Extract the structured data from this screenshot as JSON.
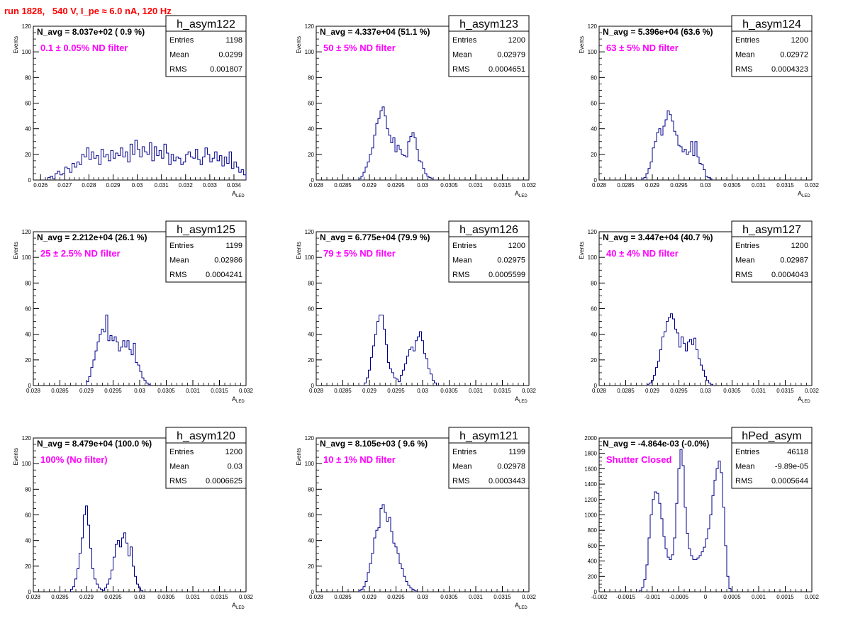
{
  "header": {
    "run_title": "run 1828,   540 V, I_pe ≈ 6.0 nA, 120 Hz"
  },
  "colors": {
    "histogram_line": "#00008b",
    "annotation": "#ff00ff",
    "run_title": "#ff0000"
  },
  "chart_data": [
    {
      "type": "histogram",
      "name": "h_asym122",
      "ylabel": "Events",
      "xlabel": "A",
      "xlabel_sub": "LED",
      "navg": "N_avg = 8.037e+02 ( 0.9 %)",
      "filter": "0.1 ± 0.05% ND filter",
      "stats": {
        "Entries": "1198",
        "Mean": "0.0299",
        "RMS": "0.001807"
      },
      "xlim": [
        0.0257,
        0.0345
      ],
      "ylim": [
        0,
        120
      ],
      "xticks": [
        0.026,
        0.027,
        0.028,
        0.029,
        0.03,
        0.031,
        0.032,
        0.033,
        0.034
      ],
      "xtick_labels": [
        "0.026",
        "0.027",
        "0.028",
        "0.029",
        "0.03",
        "0.031",
        "0.032",
        "0.033",
        "0.034"
      ],
      "yticks": [
        0,
        20,
        40,
        60,
        80,
        100,
        120
      ],
      "bin_start": 0.0263,
      "bin_width": 0.0001,
      "counts": [
        2,
        3,
        1,
        5,
        7,
        4,
        5,
        10,
        9,
        6,
        13,
        10,
        14,
        12,
        20,
        18,
        25,
        16,
        22,
        17,
        19,
        12,
        24,
        18,
        20,
        15,
        23,
        17,
        21,
        19,
        25,
        18,
        22,
        14,
        28,
        20,
        31,
        24,
        18,
        26,
        22,
        20,
        29,
        15,
        26,
        19,
        23,
        17,
        28,
        21,
        12,
        20,
        15,
        18,
        17,
        12,
        14,
        20,
        22,
        18,
        17,
        24,
        16,
        12,
        18,
        25,
        20,
        14,
        17,
        22,
        15,
        19,
        11,
        18,
        13,
        22,
        9,
        14,
        10,
        6,
        8,
        4,
        7,
        5,
        2,
        6,
        4,
        3,
        1
      ]
    },
    {
      "type": "histogram",
      "name": "h_asym123",
      "ylabel": "Events",
      "xlabel": "A",
      "xlabel_sub": "LED",
      "navg": "N_avg = 4.337e+04 (51.1 %)",
      "filter": "50 ± 5% ND filter",
      "stats": {
        "Entries": "1200",
        "Mean": "0.02979",
        "RMS": "0.0004651"
      },
      "xlim": [
        0.028,
        0.032
      ],
      "ylim": [
        0,
        120
      ],
      "xticks": [
        0.028,
        0.0285,
        0.029,
        0.0295,
        0.03,
        0.0305,
        0.031,
        0.0315,
        0.032
      ],
      "xtick_labels": [
        "0.028",
        "0.0285",
        "0.029",
        "0.0295",
        "0.03",
        "0.0305",
        "0.031",
        "0.0315",
        "0.032"
      ],
      "yticks": [
        0,
        20,
        40,
        60,
        80,
        100,
        120
      ],
      "bin_start": 0.0288,
      "bin_width": 4e-05,
      "counts": [
        1,
        3,
        6,
        10,
        14,
        20,
        25,
        35,
        44,
        48,
        54,
        57,
        50,
        40,
        35,
        29,
        33,
        22,
        27,
        24,
        20,
        19,
        18,
        30,
        34,
        37,
        33,
        24,
        15,
        14,
        9,
        5,
        3,
        2,
        1
      ]
    },
    {
      "type": "histogram",
      "name": "h_asym124",
      "ylabel": "Events",
      "xlabel": "A",
      "xlabel_sub": "LED",
      "navg": "N_avg = 5.396e+04 (63.6 %)",
      "filter": "63 ± 5% ND filter",
      "stats": {
        "Entries": "1200",
        "Mean": "0.02972",
        "RMS": "0.0004323"
      },
      "xlim": [
        0.028,
        0.032
      ],
      "ylim": [
        0,
        120
      ],
      "xticks": [
        0.028,
        0.0285,
        0.029,
        0.0295,
        0.03,
        0.0305,
        0.031,
        0.0315,
        0.032
      ],
      "xtick_labels": [
        "0.028",
        "0.0285",
        "0.029",
        "0.0295",
        "0.03",
        "0.0305",
        "0.031",
        "0.0315",
        "0.032"
      ],
      "yticks": [
        0,
        20,
        40,
        60,
        80,
        100,
        120
      ],
      "bin_start": 0.0288,
      "bin_width": 4e-05,
      "counts": [
        1,
        2,
        5,
        9,
        14,
        25,
        30,
        37,
        40,
        35,
        42,
        47,
        54,
        51,
        46,
        38,
        35,
        27,
        26,
        22,
        24,
        20,
        22,
        30,
        19,
        30,
        18,
        13,
        12,
        8,
        3,
        2,
        1
      ]
    },
    {
      "type": "histogram",
      "name": "h_asym125",
      "ylabel": "Events",
      "xlabel": "A",
      "xlabel_sub": "LED",
      "navg": "N_avg = 2.212e+04 (26.1 %)",
      "filter": "25 ± 2.5% ND filter",
      "stats": {
        "Entries": "1199",
        "Mean": "0.02986",
        "RMS": "0.0004241"
      },
      "xlim": [
        0.028,
        0.032
      ],
      "ylim": [
        0,
        120
      ],
      "xticks": [
        0.028,
        0.0285,
        0.029,
        0.0295,
        0.03,
        0.0305,
        0.031,
        0.0315,
        0.032
      ],
      "xtick_labels": [
        "0.028",
        "0.0285",
        "0.029",
        "0.0295",
        "0.03",
        "0.0305",
        "0.031",
        "0.0315",
        "0.032"
      ],
      "yticks": [
        0,
        20,
        40,
        60,
        80,
        100,
        120
      ],
      "bin_start": 0.029,
      "bin_width": 4e-05,
      "counts": [
        3,
        7,
        14,
        20,
        27,
        34,
        40,
        44,
        42,
        55,
        35,
        39,
        35,
        38,
        34,
        27,
        30,
        35,
        30,
        35,
        28,
        24,
        33,
        18,
        16,
        11,
        6,
        4,
        2,
        1
      ]
    },
    {
      "type": "histogram",
      "name": "h_asym126",
      "ylabel": "Events",
      "xlabel": "A",
      "xlabel_sub": "LED",
      "navg": "N_avg = 6.775e+04 (79.9 %)",
      "filter": "79 ± 5% ND filter",
      "stats": {
        "Entries": "1200",
        "Mean": "0.02975",
        "RMS": "0.0005599"
      },
      "xlim": [
        0.028,
        0.032
      ],
      "ylim": [
        0,
        120
      ],
      "xticks": [
        0.028,
        0.0285,
        0.029,
        0.0295,
        0.03,
        0.0305,
        0.031,
        0.0315,
        0.032
      ],
      "xtick_labels": [
        "0.028",
        "0.0285",
        "0.029",
        "0.0295",
        "0.03",
        "0.0305",
        "0.031",
        "0.0315",
        "0.032"
      ],
      "yticks": [
        0,
        20,
        40,
        60,
        80,
        100,
        120
      ],
      "bin_start": 0.0289,
      "bin_width": 4e-05,
      "counts": [
        2,
        6,
        12,
        22,
        31,
        40,
        50,
        55,
        55,
        44,
        32,
        18,
        13,
        10,
        6,
        5,
        3,
        8,
        12,
        17,
        23,
        28,
        30,
        27,
        35,
        38,
        42,
        35,
        25,
        21,
        13,
        9,
        4,
        2
      ]
    },
    {
      "type": "histogram",
      "name": "h_asym127",
      "ylabel": "Events",
      "xlabel": "A",
      "xlabel_sub": "LED",
      "navg": "N_avg = 3.447e+04 (40.7 %)",
      "filter": "40 ± 4% ND filter",
      "stats": {
        "Entries": "1200",
        "Mean": "0.02987",
        "RMS": "0.0004043"
      },
      "xlim": [
        0.028,
        0.032
      ],
      "ylim": [
        0,
        120
      ],
      "xticks": [
        0.028,
        0.0285,
        0.029,
        0.0295,
        0.03,
        0.0305,
        0.031,
        0.0315,
        0.032
      ],
      "xtick_labels": [
        "0.028",
        "0.0285",
        "0.029",
        "0.0295",
        "0.03",
        "0.0305",
        "0.031",
        "0.0315",
        "0.032"
      ],
      "yticks": [
        0,
        20,
        40,
        60,
        80,
        100,
        120
      ],
      "bin_start": 0.0289,
      "bin_width": 4e-05,
      "counts": [
        1,
        2,
        4,
        8,
        14,
        19,
        28,
        38,
        42,
        50,
        53,
        56,
        52,
        44,
        41,
        30,
        38,
        33,
        27,
        34,
        36,
        32,
        37,
        28,
        21,
        16,
        12,
        7,
        4,
        2,
        1
      ]
    },
    {
      "type": "histogram",
      "name": "h_asym120",
      "ylabel": "Events",
      "xlabel": "A",
      "xlabel_sub": "LED",
      "navg": "N_avg = 8.479e+04 (100.0 %)",
      "filter": "100% (No filter)",
      "stats": {
        "Entries": "1200",
        "Mean": "0.03",
        "RMS": "0.0006625"
      },
      "xlim": [
        0.028,
        0.032
      ],
      "ylim": [
        0,
        120
      ],
      "xticks": [
        0.028,
        0.0285,
        0.029,
        0.0295,
        0.03,
        0.0305,
        0.031,
        0.0315,
        0.032
      ],
      "xtick_labels": [
        "0.028",
        "0.0285",
        "0.029",
        "0.0295",
        "0.03",
        "0.0305",
        "0.031",
        "0.0315",
        "0.032"
      ],
      "yticks": [
        0,
        20,
        40,
        60,
        80,
        100,
        120
      ],
      "bin_start": 0.0287,
      "bin_width": 4e-05,
      "counts": [
        2,
        4,
        10,
        18,
        30,
        42,
        60,
        67,
        52,
        34,
        18,
        10,
        6,
        3,
        2,
        1,
        3,
        6,
        10,
        17,
        27,
        37,
        40,
        35,
        42,
        46,
        38,
        28,
        35,
        20,
        12,
        6,
        3,
        1
      ]
    },
    {
      "type": "histogram",
      "name": "h_asym121",
      "ylabel": "Events",
      "xlabel": "A",
      "xlabel_sub": "LED",
      "navg": "N_avg = 8.105e+03 ( 9.6 %)",
      "filter": "10 ± 1% ND filter",
      "stats": {
        "Entries": "1199",
        "Mean": "0.02978",
        "RMS": "0.0003443"
      },
      "xlim": [
        0.028,
        0.032
      ],
      "ylim": [
        0,
        120
      ],
      "xticks": [
        0.028,
        0.0285,
        0.029,
        0.0295,
        0.03,
        0.0305,
        0.031,
        0.0315,
        0.032
      ],
      "xtick_labels": [
        "0.028",
        "0.0285",
        "0.029",
        "0.0295",
        "0.03",
        "0.0305",
        "0.031",
        "0.0315",
        "0.032"
      ],
      "yticks": [
        0,
        20,
        40,
        60,
        80,
        100,
        120
      ],
      "bin_start": 0.0288,
      "bin_width": 4e-05,
      "counts": [
        1,
        2,
        4,
        8,
        15,
        22,
        30,
        42,
        48,
        50,
        65,
        68,
        62,
        55,
        58,
        47,
        38,
        35,
        30,
        22,
        18,
        12,
        8,
        5,
        3,
        2,
        1
      ]
    },
    {
      "type": "histogram",
      "name": "hPed_asym",
      "ylabel": "",
      "xlabel": "",
      "xlabel_sub": "",
      "navg": "N_avg = -4.864e-03 (-0.0%)",
      "filter": "Shutter Closed",
      "stats": {
        "Entries": "46118",
        "Mean": "-9.89e-05",
        "RMS": "0.0005644"
      },
      "xlim": [
        -0.002,
        0.002
      ],
      "ylim": [
        0,
        2000
      ],
      "xticks": [
        -0.002,
        -0.0015,
        -0.001,
        -0.0005,
        0,
        0.0005,
        0.001,
        0.0015,
        0.002
      ],
      "xtick_labels": [
        "-0.002",
        "-0.0015",
        "-0.001",
        "-0.0005",
        "0",
        "0.0005",
        "0.001",
        "0.0015",
        "0.002"
      ],
      "yticks": [
        0,
        200,
        400,
        600,
        800,
        1000,
        1200,
        1400,
        1600,
        1800,
        2000
      ],
      "bin_start": -0.00124,
      "bin_width": 4e-05,
      "counts": [
        20,
        60,
        160,
        350,
        700,
        1000,
        1200,
        1300,
        1280,
        1150,
        950,
        720,
        560,
        450,
        420,
        480,
        700,
        1150,
        1600,
        1850,
        1640,
        1100,
        760,
        560,
        470,
        420,
        420,
        440,
        470,
        520,
        580,
        690,
        820,
        1000,
        1250,
        1450,
        1600,
        1700,
        1550,
        1100,
        600,
        200,
        40
      ]
    }
  ]
}
